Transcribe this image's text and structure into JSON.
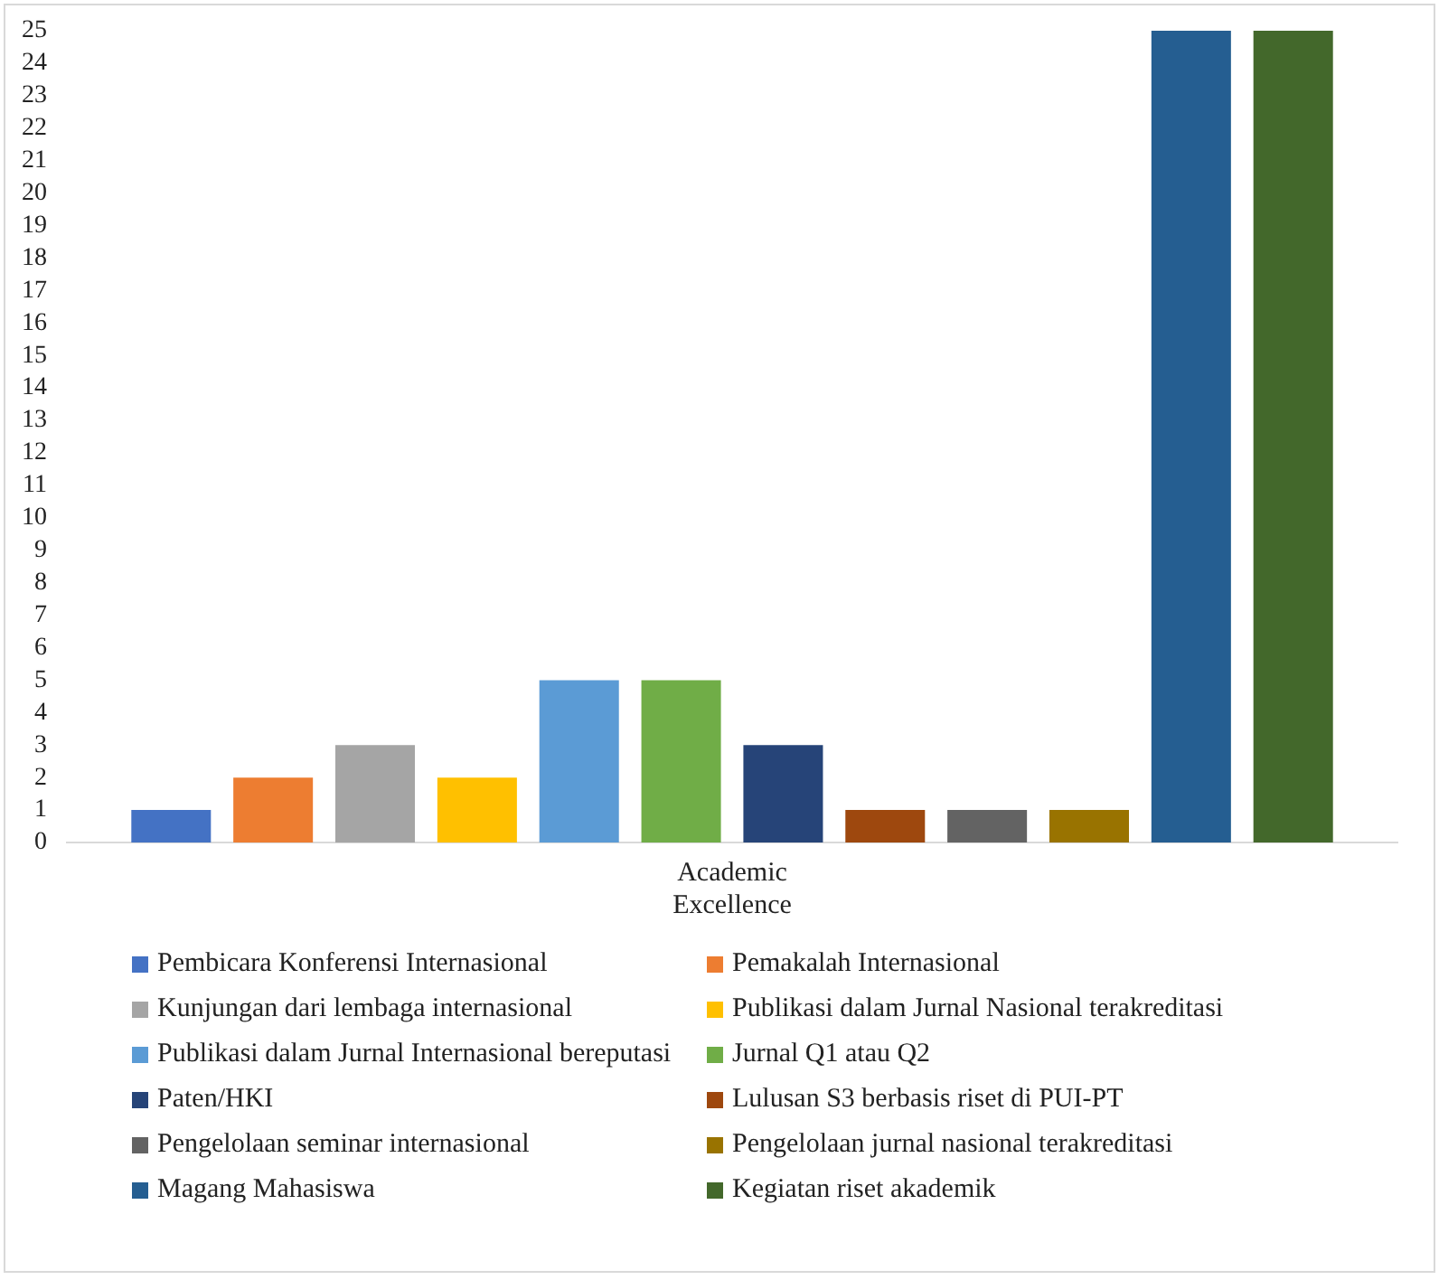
{
  "chart_data": {
    "type": "bar",
    "categories": [
      "Academic Excellence"
    ],
    "ylim": [
      0,
      25
    ],
    "yticks": [
      0,
      1,
      2,
      3,
      4,
      5,
      6,
      7,
      8,
      9,
      10,
      11,
      12,
      13,
      14,
      15,
      16,
      17,
      18,
      19,
      20,
      21,
      22,
      23,
      24,
      25
    ],
    "grid": false,
    "legend": "bottom",
    "series": [
      {
        "name": "Pembicara Konferensi Internasional",
        "color": "#4472c4",
        "values": [
          1
        ]
      },
      {
        "name": "Pemakalah Internasional",
        "color": "#ed7d31",
        "values": [
          2
        ]
      },
      {
        "name": "Kunjungan dari lembaga internasional",
        "color": "#a5a5a5",
        "values": [
          3
        ]
      },
      {
        "name": "Publikasi dalam Jurnal Nasional terakreditasi",
        "color": "#ffc000",
        "values": [
          2
        ]
      },
      {
        "name": "Publikasi dalam Jurnal Internasional bereputasi",
        "color": "#5b9bd5",
        "values": [
          5
        ]
      },
      {
        "name": "Jurnal Q1 atau Q2",
        "color": "#70ad47",
        "values": [
          5
        ]
      },
      {
        "name": "Paten/HKI",
        "color": "#264478",
        "values": [
          3
        ]
      },
      {
        "name": "Lulusan S3 berbasis riset di PUI-PT",
        "color": "#9e480e",
        "values": [
          1
        ]
      },
      {
        "name": "Pengelolaan seminar internasional",
        "color": "#636363",
        "values": [
          1
        ]
      },
      {
        "name": "Pengelolaan jurnal nasional terakreditasi",
        "color": "#997300",
        "values": [
          1
        ]
      },
      {
        "name": "Magang Mahasiswa",
        "color": "#255e91",
        "values": [
          25
        ]
      },
      {
        "name": "Kegiatan riset akademik",
        "color": "#43682b",
        "values": [
          25
        ]
      }
    ]
  }
}
